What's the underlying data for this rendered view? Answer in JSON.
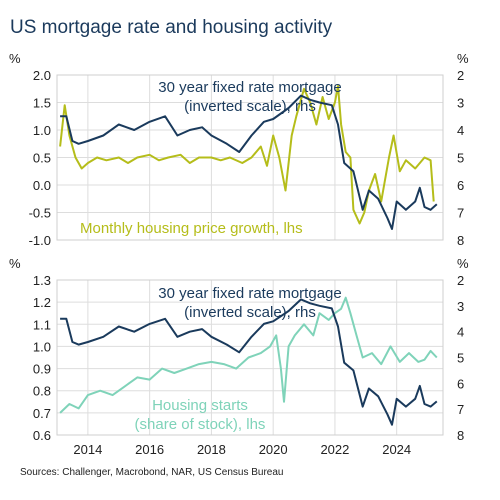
{
  "title": "US mortgage rate and housing activity",
  "sources": "Sources: Challenger, Macrobond, NAR, US Census Bureau",
  "colors": {
    "navy": "#1a3a5c",
    "olive": "#b5bd1a",
    "teal": "#7fd3b9",
    "grid": "#dddddd"
  },
  "chart_data": [
    {
      "type": "line",
      "x_ticks": [
        "2014",
        "2016",
        "2018",
        "2020",
        "2022",
        "2024"
      ],
      "left_unit": "%",
      "right_unit": "%",
      "ylim_left": [
        -1.0,
        2.0
      ],
      "left_ticks": [
        "2.0",
        "1.5",
        "1.0",
        "0.5",
        "0.0",
        "-0.5",
        "-1.0"
      ],
      "ylim_right": [
        8,
        2
      ],
      "right_ticks": [
        "2",
        "3",
        "4",
        "5",
        "6",
        "7",
        "8"
      ],
      "right_axis_inverted": true,
      "series": [
        {
          "name": "30 year fixed rate mortgage (inverted scale), rhs",
          "axis": "right",
          "label_lines": [
            "30 year fixed rate mortgage",
            "(inverted scale), rhs"
          ],
          "x": [
            2013.1,
            2013.3,
            2013.5,
            2013.7,
            2014.0,
            2014.5,
            2015.0,
            2015.5,
            2016.0,
            2016.5,
            2016.9,
            2017.3,
            2017.7,
            2018.0,
            2018.5,
            2018.9,
            2019.3,
            2019.7,
            2020.0,
            2020.5,
            2020.9,
            2021.2,
            2021.5,
            2021.9,
            2022.1,
            2022.3,
            2022.6,
            2022.9,
            2023.1,
            2023.4,
            2023.7,
            2023.85,
            2024.0,
            2024.3,
            2024.6,
            2024.75,
            2024.9,
            2025.1,
            2025.3
          ],
          "y": [
            3.5,
            3.5,
            4.4,
            4.5,
            4.4,
            4.2,
            3.8,
            4.0,
            3.7,
            3.5,
            4.2,
            4.0,
            3.9,
            4.2,
            4.5,
            4.8,
            4.2,
            3.7,
            3.6,
            3.2,
            2.75,
            2.9,
            3.0,
            3.1,
            3.8,
            5.2,
            5.5,
            6.9,
            6.2,
            6.5,
            7.2,
            7.6,
            6.6,
            6.9,
            6.6,
            6.1,
            6.8,
            6.9,
            6.7
          ]
        },
        {
          "name": "Monthly housing price growth, lhs",
          "axis": "left",
          "label_lines": [
            "Monthly housing price growth, lhs"
          ],
          "x": [
            2013.1,
            2013.25,
            2013.4,
            2013.6,
            2013.8,
            2014.0,
            2014.3,
            2014.6,
            2015.0,
            2015.3,
            2015.6,
            2016.0,
            2016.3,
            2016.6,
            2017.0,
            2017.3,
            2017.6,
            2018.0,
            2018.3,
            2018.6,
            2019.0,
            2019.3,
            2019.6,
            2019.8,
            2020.0,
            2020.2,
            2020.4,
            2020.6,
            2020.75,
            2021.0,
            2021.2,
            2021.4,
            2021.6,
            2021.8,
            2022.0,
            2022.1,
            2022.2,
            2022.35,
            2022.5,
            2022.6,
            2022.8,
            2022.95,
            2023.1,
            2023.3,
            2023.5,
            2023.75,
            2023.9,
            2024.1,
            2024.3,
            2024.6,
            2024.9,
            2025.1,
            2025.2
          ],
          "y": [
            0.7,
            1.45,
            0.9,
            0.5,
            0.3,
            0.4,
            0.5,
            0.45,
            0.5,
            0.4,
            0.5,
            0.55,
            0.45,
            0.5,
            0.55,
            0.4,
            0.5,
            0.5,
            0.45,
            0.5,
            0.4,
            0.5,
            0.7,
            0.35,
            0.9,
            0.5,
            -0.1,
            0.9,
            1.25,
            1.75,
            1.5,
            1.1,
            1.6,
            1.2,
            1.5,
            1.8,
            1.1,
            0.6,
            0.5,
            -0.45,
            -0.7,
            -0.5,
            -0.1,
            0.2,
            -0.3,
            0.5,
            0.9,
            0.25,
            0.45,
            0.3,
            0.5,
            0.45,
            -0.3
          ]
        }
      ]
    },
    {
      "type": "line",
      "x_ticks": [
        "2014",
        "2016",
        "2018",
        "2020",
        "2022",
        "2024"
      ],
      "left_unit": "%",
      "right_unit": "%",
      "ylim_left": [
        0.6,
        1.3
      ],
      "left_ticks": [
        "1.3",
        "1.2",
        "1.1",
        "1.0",
        "0.9",
        "0.8",
        "0.7",
        "0.6"
      ],
      "ylim_right": [
        8,
        2
      ],
      "right_ticks": [
        "2",
        "3",
        "4",
        "5",
        "6",
        "7",
        "8"
      ],
      "right_axis_inverted": true,
      "series": [
        {
          "name": "30 year fixed rate mortgage (inverted scale), rhs",
          "axis": "right",
          "label_lines": [
            "30 year fixed rate mortgage",
            "(inverted scale), rhs"
          ],
          "x": [
            2013.1,
            2013.3,
            2013.5,
            2013.7,
            2014.0,
            2014.5,
            2015.0,
            2015.5,
            2016.0,
            2016.5,
            2016.9,
            2017.3,
            2017.7,
            2018.0,
            2018.5,
            2018.9,
            2019.3,
            2019.7,
            2020.0,
            2020.5,
            2020.9,
            2021.2,
            2021.5,
            2021.9,
            2022.1,
            2022.3,
            2022.6,
            2022.9,
            2023.1,
            2023.4,
            2023.7,
            2023.85,
            2024.0,
            2024.3,
            2024.6,
            2024.75,
            2024.9,
            2025.1,
            2025.3
          ],
          "y": [
            3.5,
            3.5,
            4.4,
            4.5,
            4.4,
            4.2,
            3.8,
            4.0,
            3.7,
            3.5,
            4.2,
            4.0,
            3.9,
            4.2,
            4.5,
            4.8,
            4.2,
            3.7,
            3.6,
            3.2,
            2.75,
            2.9,
            3.0,
            3.1,
            3.8,
            5.2,
            5.5,
            6.9,
            6.2,
            6.5,
            7.2,
            7.6,
            6.6,
            6.9,
            6.6,
            6.1,
            6.8,
            6.9,
            6.7
          ]
        },
        {
          "name": "Housing starts (share of stock), lhs",
          "axis": "left",
          "label_lines": [
            "Housing starts",
            "(share of stock), lhs"
          ],
          "x": [
            2013.1,
            2013.4,
            2013.7,
            2014.0,
            2014.4,
            2014.8,
            2015.2,
            2015.6,
            2016.0,
            2016.4,
            2016.8,
            2017.2,
            2017.6,
            2018.0,
            2018.4,
            2018.8,
            2019.2,
            2019.6,
            2019.9,
            2020.1,
            2020.25,
            2020.35,
            2020.5,
            2020.7,
            2021.0,
            2021.3,
            2021.5,
            2021.8,
            2022.0,
            2022.2,
            2022.35,
            2022.5,
            2022.7,
            2022.9,
            2023.2,
            2023.5,
            2023.8,
            2024.1,
            2024.4,
            2024.7,
            2024.9,
            2025.1,
            2025.3
          ],
          "y": [
            0.7,
            0.74,
            0.72,
            0.78,
            0.8,
            0.78,
            0.82,
            0.86,
            0.85,
            0.9,
            0.88,
            0.9,
            0.92,
            0.93,
            0.92,
            0.9,
            0.95,
            0.97,
            1.0,
            1.05,
            0.9,
            0.75,
            1.0,
            1.05,
            1.1,
            1.05,
            1.15,
            1.12,
            1.15,
            1.17,
            1.22,
            1.15,
            1.05,
            0.95,
            0.97,
            0.92,
            1.0,
            0.93,
            0.97,
            0.93,
            0.94,
            0.98,
            0.95
          ]
        }
      ]
    }
  ]
}
